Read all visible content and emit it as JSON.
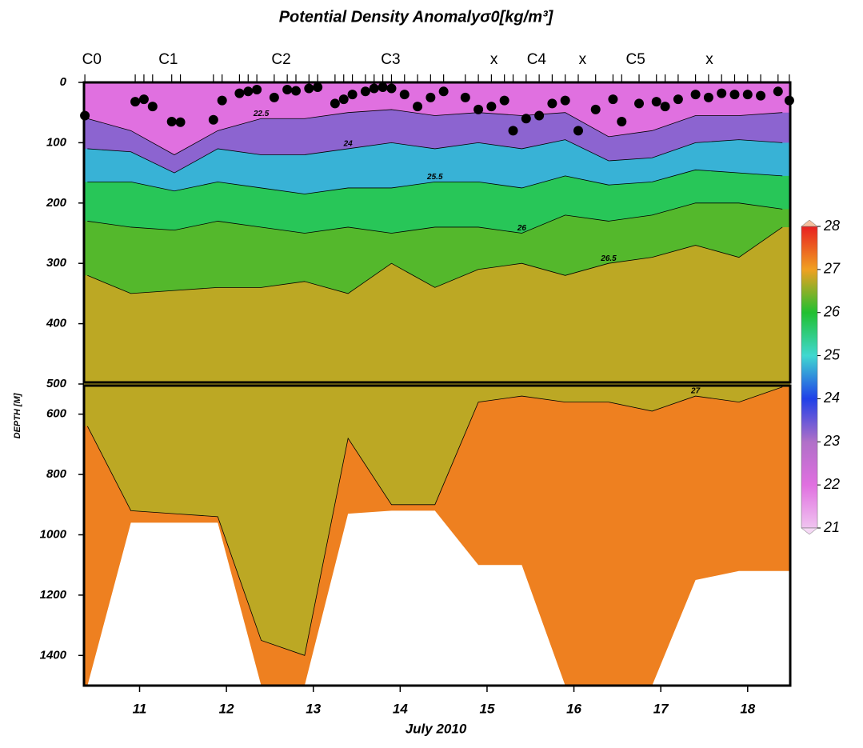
{
  "chart_data": {
    "type": "section",
    "title": "Potential Density Anomalyσ0[kg/m³]",
    "x_label": "July 2010",
    "y_label": "DEPTH [M]",
    "xlim": [
      10.36,
      18.49
    ],
    "xticks": [
      11,
      12,
      13,
      14,
      15,
      16,
      17,
      18
    ],
    "ylim": [
      0,
      1500
    ],
    "panel_break": 500,
    "yticks": [
      0,
      100,
      200,
      300,
      400,
      500,
      600,
      800,
      1000,
      1200,
      1400
    ],
    "stations": [
      {
        "name": "C0",
        "x": 10.45
      },
      {
        "name": "C1",
        "x": 11.33
      },
      {
        "name": "C2",
        "x": 12.63
      },
      {
        "name": "C3",
        "x": 13.89
      },
      {
        "name": "x",
        "x": 15.08
      },
      {
        "name": "C4",
        "x": 15.57
      },
      {
        "name": "x",
        "x": 16.1
      },
      {
        "name": "C5",
        "x": 16.71
      },
      {
        "name": "x",
        "x": 17.56
      }
    ],
    "x": [
      10.4,
      10.9,
      11.4,
      11.9,
      12.4,
      12.9,
      13.4,
      13.9,
      14.4,
      14.9,
      15.4,
      15.9,
      16.4,
      16.9,
      17.4,
      17.9,
      18.4
    ],
    "base_level": 22,
    "contours": [
      {
        "level": 22.5,
        "depths": [
          60,
          80,
          120,
          80,
          60,
          60,
          50,
          45,
          55,
          50,
          55,
          50,
          90,
          80,
          55,
          55,
          50
        ]
      },
      {
        "level": 24,
        "depths": [
          110,
          115,
          150,
          110,
          120,
          120,
          110,
          100,
          110,
          100,
          110,
          95,
          130,
          125,
          100,
          95,
          100
        ]
      },
      {
        "level": 25.5,
        "depths": [
          165,
          165,
          180,
          165,
          175,
          185,
          175,
          175,
          165,
          165,
          175,
          155,
          170,
          165,
          145,
          150,
          155
        ]
      },
      {
        "level": 26,
        "depths": [
          230,
          240,
          245,
          230,
          240,
          250,
          240,
          250,
          240,
          240,
          250,
          220,
          230,
          220,
          200,
          200,
          210
        ]
      },
      {
        "level": 26.5,
        "depths": [
          320,
          350,
          345,
          340,
          340,
          330,
          350,
          300,
          340,
          310,
          300,
          320,
          300,
          290,
          270,
          290,
          240
        ]
      },
      {
        "level": 27,
        "depths": [
          640,
          920,
          930,
          940,
          1350,
          1400,
          680,
          900,
          900,
          560,
          540,
          560,
          560,
          590,
          540,
          560,
          510
        ]
      }
    ],
    "data_bottom": [
      1500,
      960,
      960,
      960,
      1500,
      1500,
      930,
      920,
      920,
      1100,
      1100,
      1500,
      1500,
      1500,
      1150,
      1120,
      1120
    ],
    "mixed_layer": {
      "x": [
        10.37,
        10.95,
        11.05,
        11.15,
        11.37,
        11.47,
        11.85,
        11.95,
        12.15,
        12.25,
        12.35,
        12.55,
        12.7,
        12.8,
        12.95,
        13.05,
        13.25,
        13.35,
        13.45,
        13.6,
        13.7,
        13.8,
        13.9,
        14.05,
        14.2,
        14.35,
        14.5,
        14.75,
        14.9,
        15.05,
        15.2,
        15.3,
        15.45,
        15.6,
        15.75,
        15.9,
        16.05,
        16.25,
        16.45,
        16.55,
        16.75,
        16.95,
        17.05,
        17.2,
        17.4,
        17.55,
        17.7,
        17.85,
        18.0,
        18.15,
        18.35,
        18.48
      ],
      "depths": [
        55,
        32,
        28,
        40,
        65,
        66,
        62,
        30,
        18,
        15,
        12,
        25,
        12,
        14,
        10,
        8,
        35,
        28,
        20,
        15,
        10,
        8,
        10,
        20,
        40,
        25,
        15,
        25,
        45,
        40,
        30,
        80,
        60,
        55,
        35,
        30,
        80,
        45,
        28,
        65,
        35,
        32,
        40,
        28,
        20,
        25,
        18,
        20,
        20,
        22,
        15,
        30
      ]
    },
    "colorbar": {
      "ticks": [
        21,
        22,
        23,
        24,
        25,
        26,
        27,
        28
      ],
      "colors": [
        "#f0c4f0",
        "#e070e0",
        "#b070c8",
        "#2040e8",
        "#40d8d0",
        "#20c030",
        "#f0a020",
        "#e82020"
      ]
    }
  }
}
